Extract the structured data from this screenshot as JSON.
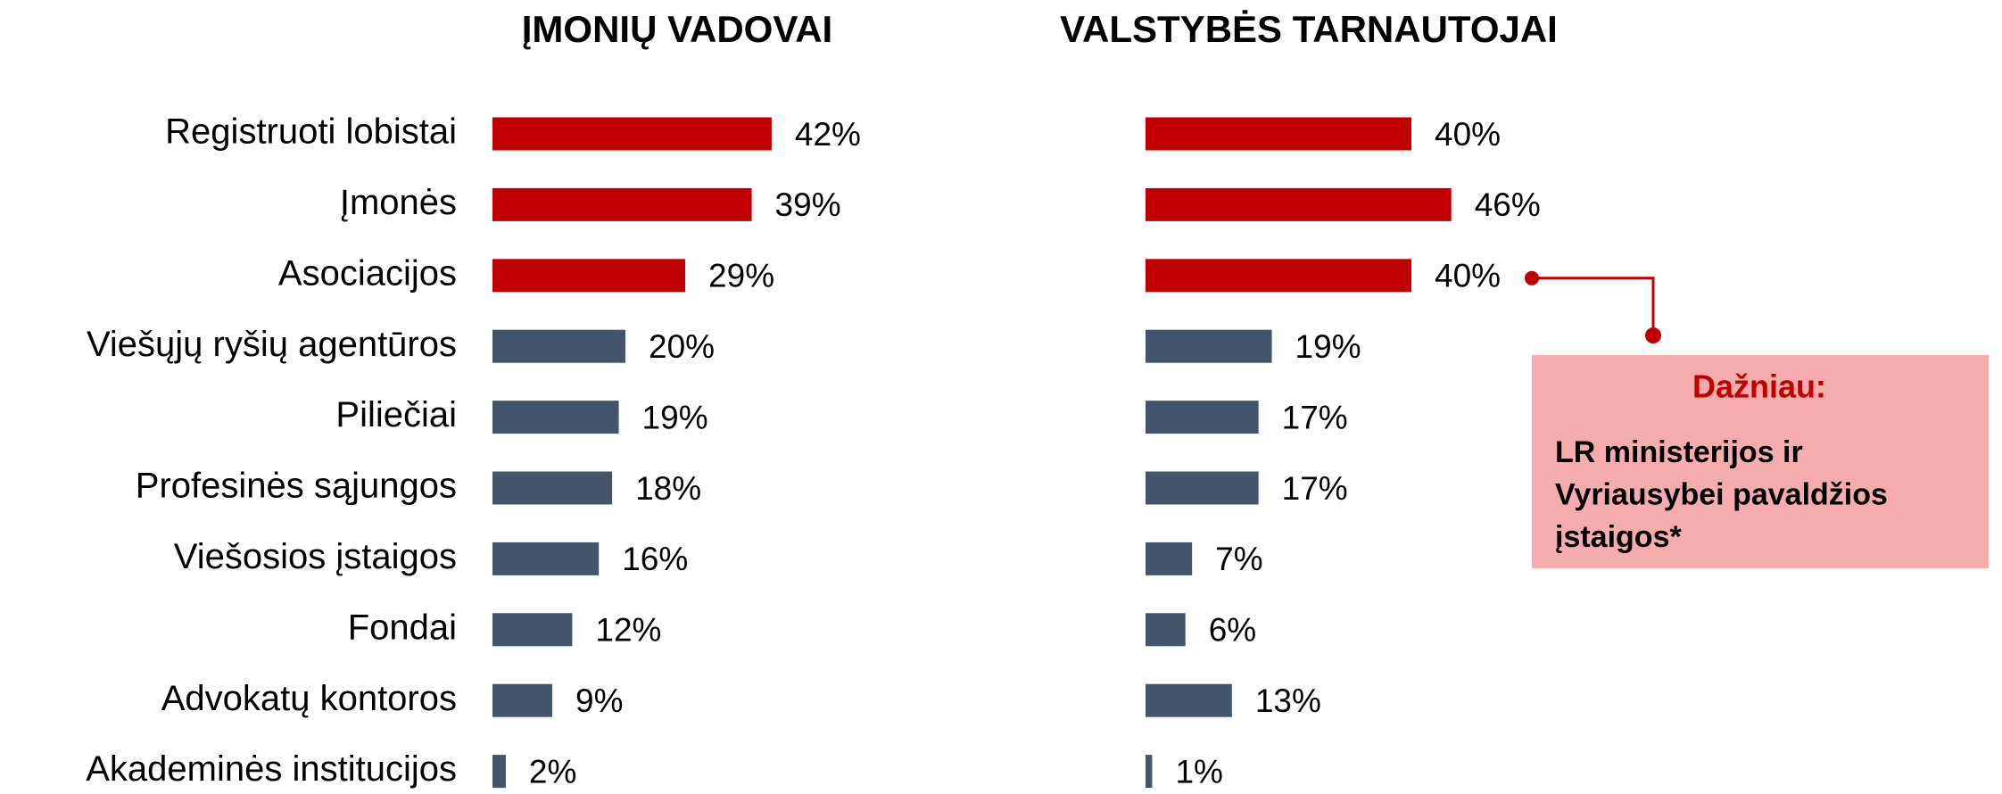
{
  "chart_data": [
    {
      "type": "hbar",
      "title": "ĮMONIŲ VADOVAI",
      "categories": [
        "Registruoti lobistai",
        "Įmonės",
        "Asociacijos",
        "Viešųjų ryšių agentūros",
        "Piliečiai",
        "Profesinės sąjungos",
        "Viešosios įstaigos",
        "Fondai",
        "Advokatų kontoros",
        "Akademinės institucijos"
      ],
      "values": [
        42,
        39,
        29,
        20,
        19,
        18,
        16,
        12,
        9,
        2
      ],
      "value_labels": [
        "42%",
        "39%",
        "29%",
        "20%",
        "19%",
        "18%",
        "16%",
        "12%",
        "9%",
        "2%"
      ],
      "colors": [
        "#c00000",
        "#c00000",
        "#c00000",
        "#44546a",
        "#44546a",
        "#44546a",
        "#44546a",
        "#44546a",
        "#44546a",
        "#44546a"
      ]
    },
    {
      "type": "hbar",
      "title": "VALSTYBĖS TARNAUTOJAI",
      "values": [
        40,
        46,
        40,
        19,
        17,
        17,
        7,
        6,
        13,
        1
      ],
      "value_labels": [
        "40%",
        "46%",
        "40%",
        "19%",
        "17%",
        "17%",
        "7%",
        "6%",
        "13%",
        "1%"
      ],
      "colors": [
        "#c00000",
        "#c00000",
        "#c00000",
        "#44546a",
        "#44546a",
        "#44546a",
        "#44546a",
        "#44546a",
        "#44546a",
        "#44546a"
      ],
      "annotation": {
        "title": "Dažniau:",
        "lines": [
          "LR ministerijos ir",
          "Vyriausybei pavaldžios",
          "įstaigos*"
        ]
      }
    }
  ]
}
